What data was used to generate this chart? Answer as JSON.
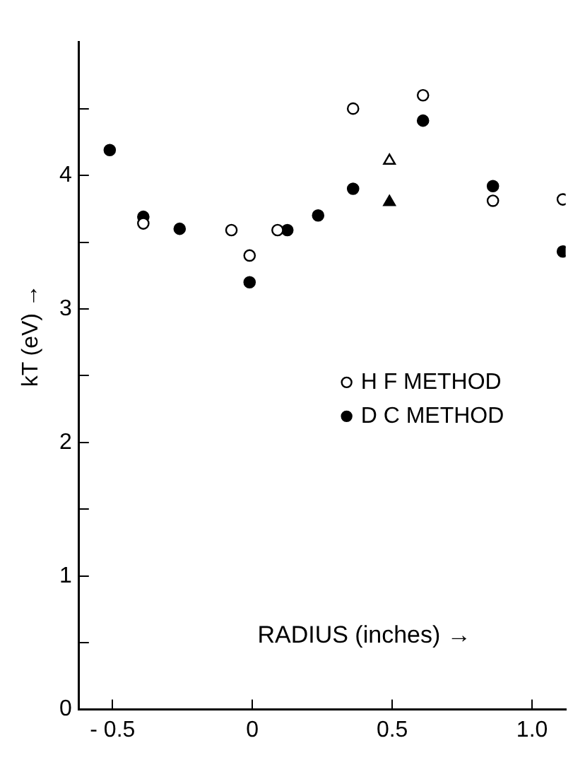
{
  "chart_data": {
    "type": "scatter",
    "xlabel": "RADIUS (inches) →",
    "ylabel": "kT (eV) →",
    "xlim": [
      -0.62,
      1.12
    ],
    "ylim": [
      0,
      5
    ],
    "xticks": [
      {
        "value": -0.5,
        "label": "- 0.5"
      },
      0,
      0.5,
      {
        "value": 1,
        "label": "1.0"
      }
    ],
    "yticks": [
      0,
      {
        "value": 0.5,
        "label": null
      },
      1,
      {
        "value": 1.5,
        "label": null
      },
      2,
      {
        "value": 2.5,
        "label": null
      },
      3,
      {
        "value": 3.5,
        "label": null
      },
      4,
      {
        "value": 4.5,
        "label": null
      }
    ],
    "grid": false,
    "legend": "right",
    "series": [
      {
        "name": "H F METHOD",
        "color": "#000000",
        "marker": "circle",
        "x": [
          -0.39,
          -0.075,
          -0.01,
          0.09,
          0.36,
          0.61,
          0.86,
          1.11
        ],
        "values": [
          3.64,
          3.59,
          3.4,
          3.59,
          4.5,
          4.6,
          3.81,
          3.82
        ]
      },
      {
        "name": "D C METHOD",
        "color": "#000000",
        "marker": "circle",
        "x": [
          -0.51,
          -0.39,
          -0.26,
          -0.01,
          0.125,
          0.235,
          0.36,
          0.61,
          0.86,
          1.11
        ],
        "values": [
          4.19,
          3.69,
          3.6,
          3.2,
          3.59,
          3.7,
          3.9,
          4.41,
          3.92,
          3.43
        ]
      },
      {
        "color": "#000000",
        "marker": "triangle",
        "x": [
          0.49
        ],
        "values": [
          4.11
        ]
      },
      {
        "color": "#000000",
        "marker": "triangle",
        "x": [
          0.49
        ],
        "values": [
          3.8
        ]
      }
    ]
  }
}
